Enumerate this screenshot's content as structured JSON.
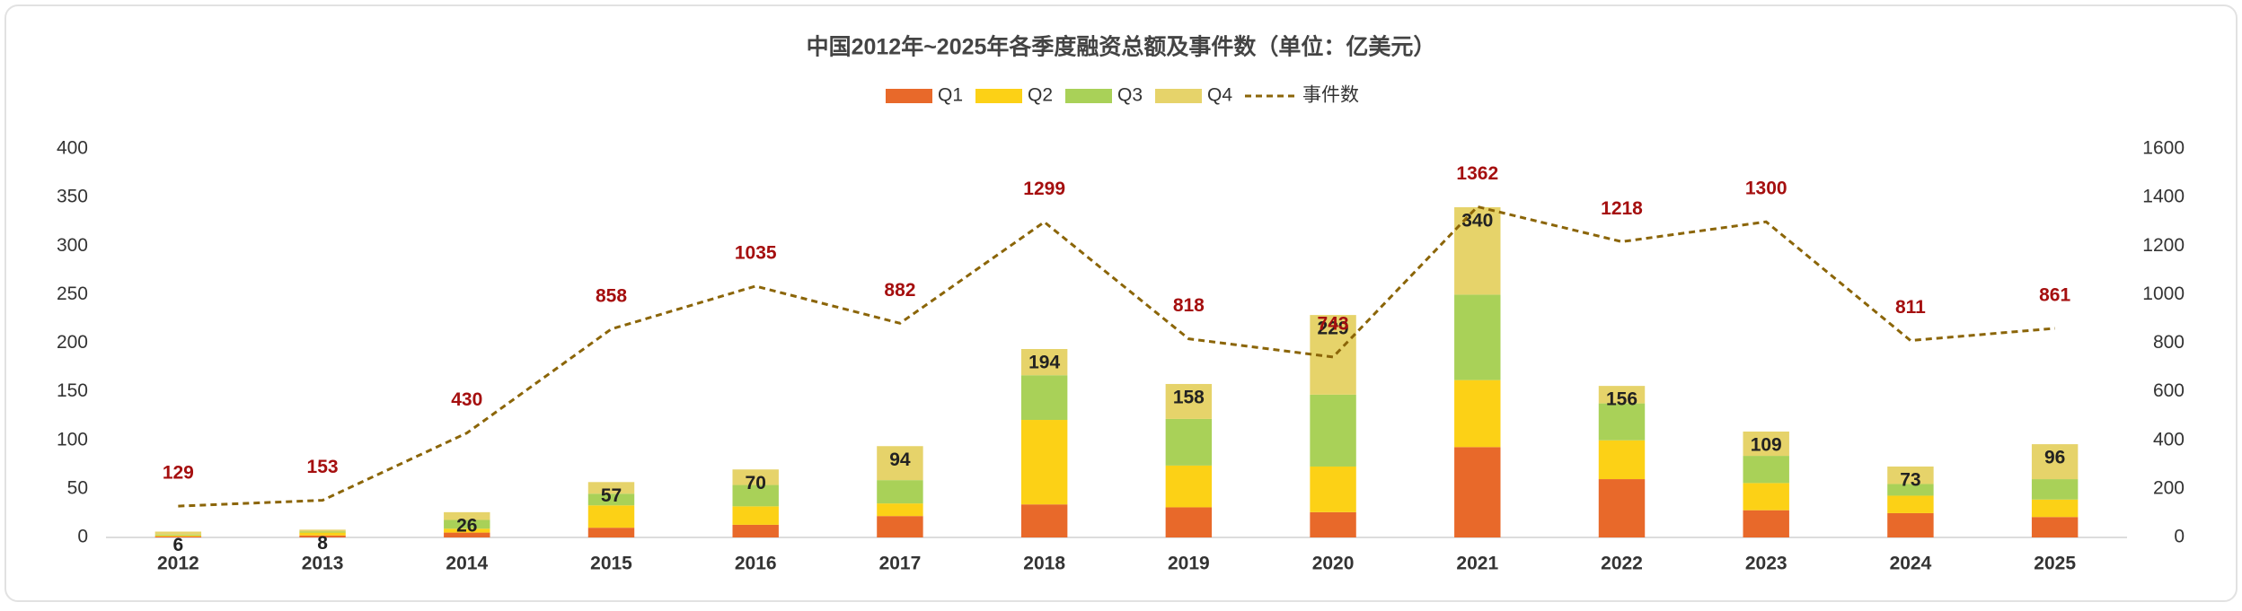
{
  "chart_data": {
    "type": "bar",
    "stacked": true,
    "title": "中国2012年~2025年各季度融资总额及事件数（单位：亿美元）",
    "categories": [
      "2012",
      "2013",
      "2014",
      "2015",
      "2016",
      "2017",
      "2018",
      "2019",
      "2020",
      "2021",
      "2022",
      "2023",
      "2024",
      "2025"
    ],
    "series": [
      {
        "name": "Q1",
        "color": "#E8692A",
        "values": [
          1,
          2,
          5,
          10,
          13,
          22,
          34,
          31,
          26,
          93,
          60,
          28,
          25,
          21
        ]
      },
      {
        "name": "Q2",
        "color": "#FCD116",
        "values": [
          1,
          3,
          4,
          23,
          19,
          13,
          87,
          43,
          47,
          69,
          40,
          28,
          18,
          18
        ]
      },
      {
        "name": "Q3",
        "color": "#A9D158",
        "values": [
          1,
          1,
          9,
          12,
          22,
          24,
          46,
          48,
          74,
          88,
          38,
          28,
          12,
          21
        ]
      },
      {
        "name": "Q4",
        "color": "#E6D36A",
        "values": [
          3,
          2,
          8,
          12,
          16,
          35,
          27,
          36,
          82,
          90,
          18,
          25,
          18,
          36
        ]
      },
      {
        "name": "事件数",
        "color": "#8B6508",
        "type": "line",
        "dashed": true,
        "axis": "y2",
        "label_color": "#A50F0F",
        "values": [
          129,
          153,
          430,
          858,
          1035,
          882,
          1299,
          818,
          743,
          1362,
          1218,
          1300,
          811,
          861
        ]
      }
    ],
    "totals": [
      6,
      8,
      26,
      57,
      70,
      94,
      194,
      158,
      229,
      340,
      156,
      109,
      73,
      96
    ],
    "ylim": [
      0,
      400
    ],
    "yticks": [
      0,
      50,
      100,
      150,
      200,
      250,
      300,
      350,
      400
    ],
    "y2lim": [
      0,
      1600
    ],
    "y2ticks": [
      0,
      200,
      400,
      600,
      800,
      1000,
      1200,
      1400,
      1600
    ],
    "grid": false,
    "legend": "top"
  }
}
